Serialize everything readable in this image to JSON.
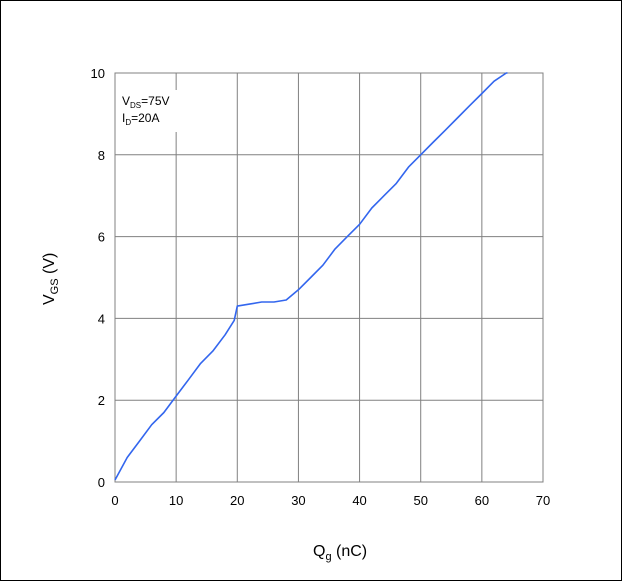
{
  "chart_data": {
    "type": "line",
    "title": "",
    "xlabel": {
      "main": "Q",
      "sub": "g",
      "tail": " (nC)"
    },
    "ylabel": {
      "main": "V",
      "sub": "GS",
      "tail": " (V)"
    },
    "xlim": [
      0,
      70
    ],
    "ylim": [
      0,
      10
    ],
    "xticks": [
      "0",
      "10",
      "20",
      "30",
      "40",
      "50",
      "60",
      "70"
    ],
    "yticks": [
      "0",
      "2",
      "4",
      "6",
      "8",
      "10"
    ],
    "grid": true,
    "annotation": {
      "line1": {
        "main": "V",
        "sub": "DS",
        "tail": "=75V"
      },
      "line2": {
        "main": "I",
        "sub": "D",
        "tail": "=20A"
      }
    },
    "series_color": "#3366ee",
    "series": [
      {
        "x": [
          0,
          2,
          4,
          6,
          8,
          10,
          12,
          14,
          16,
          18,
          19.5,
          20,
          22,
          24,
          26,
          28,
          30,
          32,
          34,
          36,
          38,
          40,
          42,
          44,
          46,
          48,
          50,
          52,
          54,
          56,
          58,
          60,
          62,
          64,
          64.2
        ],
        "y": [
          0.05,
          0.6,
          1.0,
          1.4,
          1.7,
          2.1,
          2.5,
          2.9,
          3.2,
          3.6,
          3.95,
          4.3,
          4.35,
          4.4,
          4.4,
          4.45,
          4.7,
          5.0,
          5.3,
          5.7,
          6.0,
          6.3,
          6.7,
          7.0,
          7.3,
          7.7,
          8.0,
          8.3,
          8.6,
          8.9,
          9.2,
          9.5,
          9.8,
          10.0,
          10.0
        ]
      }
    ]
  }
}
